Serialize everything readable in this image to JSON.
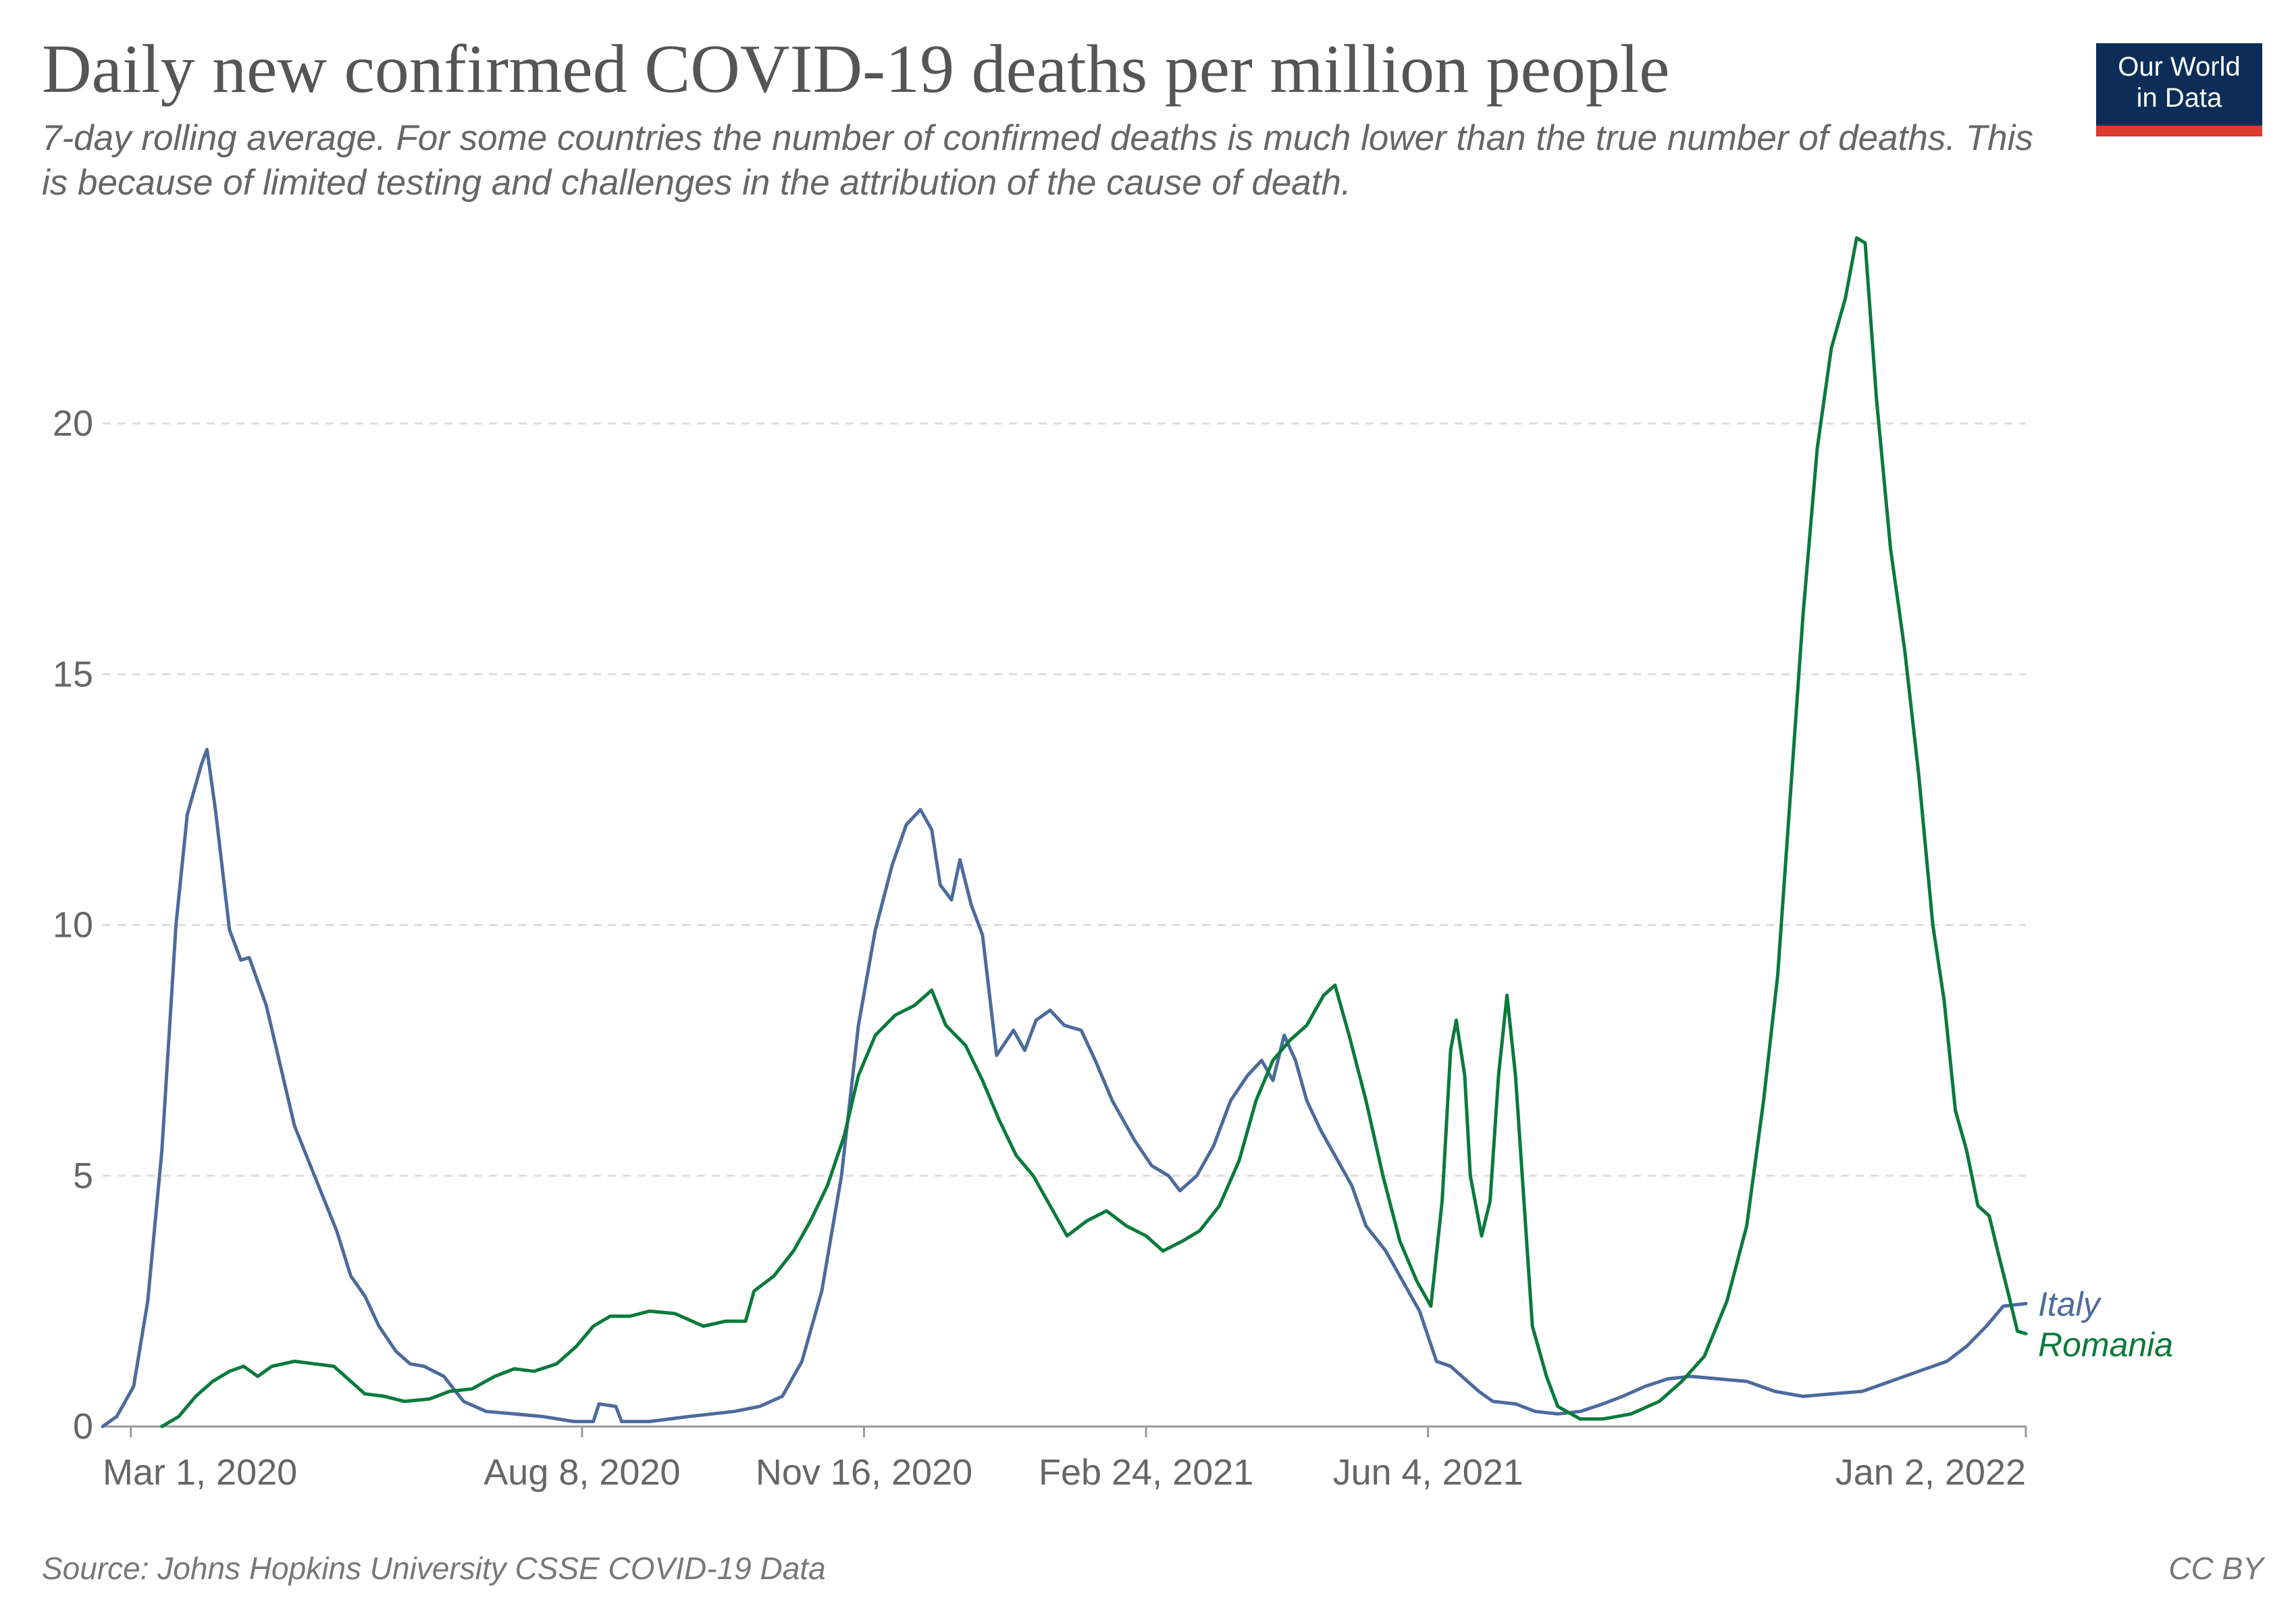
{
  "header": {
    "title": "Daily new confirmed COVID-19 deaths per million people",
    "subtitle": "7-day rolling average. For some countries the number of confirmed deaths is much lower than the true number of deaths. This is because of limited testing and challenges in the attribution of the cause of death.",
    "logo_text": "Our World\nin Data"
  },
  "footer": {
    "source": "Source: Johns Hopkins University CSSE COVID-19 Data",
    "license": "CC BY"
  },
  "colors": {
    "italy": "#4c6a9c",
    "romania": "#0a7a3c",
    "grid": "#dddddd",
    "axis_text": "#666666",
    "logo_bg": "#0c2d57",
    "logo_bar": "#dd3b2f"
  },
  "chart_data": {
    "type": "line",
    "title": "Daily new confirmed COVID-19 deaths per million people",
    "xlabel": "",
    "ylabel": "",
    "x_range": [
      "2020-02-20",
      "2022-01-02"
    ],
    "ylim": [
      0,
      24
    ],
    "yticks": [
      0,
      5,
      10,
      15,
      20
    ],
    "ytick_labels": [
      "0",
      "5",
      "10",
      "15",
      "20"
    ],
    "xticks": [
      "2020-03-01",
      "2020-08-08",
      "2020-11-16",
      "2021-02-24",
      "2021-06-04",
      "2022-01-02"
    ],
    "xtick_labels": [
      "Mar 1, 2020",
      "Aug 8, 2020",
      "Nov 16, 2020",
      "Feb 24, 2021",
      "Jun 4, 2021",
      "Jan 2, 2022"
    ],
    "grid": "horizontal dashed",
    "legend": "inline labels at right end of lines",
    "series": [
      {
        "name": "Italy",
        "color": "#4c6a9c",
        "points": [
          [
            "2020-02-20",
            0
          ],
          [
            "2020-02-25",
            0.2
          ],
          [
            "2020-03-02",
            0.8
          ],
          [
            "2020-03-07",
            2.5
          ],
          [
            "2020-03-12",
            5.5
          ],
          [
            "2020-03-17",
            10
          ],
          [
            "2020-03-21",
            12.2
          ],
          [
            "2020-03-26",
            13.2
          ],
          [
            "2020-03-28",
            13.5
          ],
          [
            "2020-03-31",
            12.3
          ],
          [
            "2020-04-05",
            9.9
          ],
          [
            "2020-04-09",
            9.3
          ],
          [
            "2020-04-12",
            9.35
          ],
          [
            "2020-04-18",
            8.4
          ],
          [
            "2020-04-23",
            7.2
          ],
          [
            "2020-04-28",
            6.0
          ],
          [
            "2020-05-03",
            5.3
          ],
          [
            "2020-05-08",
            4.6
          ],
          [
            "2020-05-13",
            3.9
          ],
          [
            "2020-05-18",
            3.0
          ],
          [
            "2020-05-23",
            2.6
          ],
          [
            "2020-05-28",
            2.0
          ],
          [
            "2020-06-03",
            1.5
          ],
          [
            "2020-06-08",
            1.25
          ],
          [
            "2020-06-13",
            1.2
          ],
          [
            "2020-06-20",
            1.0
          ],
          [
            "2020-06-27",
            0.5
          ],
          [
            "2020-07-05",
            0.3
          ],
          [
            "2020-07-15",
            0.25
          ],
          [
            "2020-07-25",
            0.2
          ],
          [
            "2020-08-05",
            0.1
          ],
          [
            "2020-08-12",
            0.1
          ],
          [
            "2020-08-14",
            0.45
          ],
          [
            "2020-08-20",
            0.4
          ],
          [
            "2020-08-22",
            0.1
          ],
          [
            "2020-09-01",
            0.1
          ],
          [
            "2020-09-15",
            0.2
          ],
          [
            "2020-10-01",
            0.3
          ],
          [
            "2020-10-10",
            0.4
          ],
          [
            "2020-10-18",
            0.6
          ],
          [
            "2020-10-25",
            1.3
          ],
          [
            "2020-11-01",
            2.7
          ],
          [
            "2020-11-08",
            5.0
          ],
          [
            "2020-11-14",
            8.0
          ],
          [
            "2020-11-20",
            9.9
          ],
          [
            "2020-11-26",
            11.2
          ],
          [
            "2020-12-01",
            12.0
          ],
          [
            "2020-12-06",
            12.3
          ],
          [
            "2020-12-10",
            11.9
          ],
          [
            "2020-12-13",
            10.8
          ],
          [
            "2020-12-17",
            10.5
          ],
          [
            "2020-12-20",
            11.3
          ],
          [
            "2020-12-24",
            10.4
          ],
          [
            "2020-12-28",
            9.8
          ],
          [
            "2021-01-02",
            7.4
          ],
          [
            "2021-01-08",
            7.9
          ],
          [
            "2021-01-12",
            7.5
          ],
          [
            "2021-01-16",
            8.1
          ],
          [
            "2021-01-21",
            8.3
          ],
          [
            "2021-01-26",
            8.0
          ],
          [
            "2021-02-01",
            7.9
          ],
          [
            "2021-02-06",
            7.3
          ],
          [
            "2021-02-12",
            6.5
          ],
          [
            "2021-02-20",
            5.7
          ],
          [
            "2021-02-26",
            5.2
          ],
          [
            "2021-03-04",
            5.0
          ],
          [
            "2021-03-08",
            4.7
          ],
          [
            "2021-03-14",
            5.0
          ],
          [
            "2021-03-20",
            5.6
          ],
          [
            "2021-03-26",
            6.5
          ],
          [
            "2021-04-01",
            7.0
          ],
          [
            "2021-04-06",
            7.3
          ],
          [
            "2021-04-10",
            6.9
          ],
          [
            "2021-04-14",
            7.8
          ],
          [
            "2021-04-18",
            7.3
          ],
          [
            "2021-04-22",
            6.5
          ],
          [
            "2021-04-27",
            5.9
          ],
          [
            "2021-05-02",
            5.4
          ],
          [
            "2021-05-08",
            4.8
          ],
          [
            "2021-05-13",
            4.0
          ],
          [
            "2021-05-20",
            3.5
          ],
          [
            "2021-05-26",
            2.9
          ],
          [
            "2021-06-01",
            2.3
          ],
          [
            "2021-06-07",
            1.3
          ],
          [
            "2021-06-12",
            1.2
          ],
          [
            "2021-06-17",
            0.95
          ],
          [
            "2021-06-22",
            0.7
          ],
          [
            "2021-06-27",
            0.5
          ],
          [
            "2021-07-05",
            0.45
          ],
          [
            "2021-07-12",
            0.3
          ],
          [
            "2021-07-20",
            0.25
          ],
          [
            "2021-07-28",
            0.3
          ],
          [
            "2021-08-05",
            0.45
          ],
          [
            "2021-08-12",
            0.6
          ],
          [
            "2021-08-20",
            0.8
          ],
          [
            "2021-08-28",
            0.95
          ],
          [
            "2021-09-05",
            1.0
          ],
          [
            "2021-09-15",
            0.95
          ],
          [
            "2021-09-25",
            0.9
          ],
          [
            "2021-10-05",
            0.7
          ],
          [
            "2021-10-15",
            0.6
          ],
          [
            "2021-10-25",
            0.65
          ],
          [
            "2021-11-05",
            0.7
          ],
          [
            "2021-11-15",
            0.9
          ],
          [
            "2021-11-25",
            1.1
          ],
          [
            "2021-12-05",
            1.3
          ],
          [
            "2021-12-12",
            1.6
          ],
          [
            "2021-12-19",
            2.0
          ],
          [
            "2021-12-25",
            2.4
          ],
          [
            "2022-01-02",
            2.45
          ]
        ]
      },
      {
        "name": "Romania",
        "color": "#0a7a3c",
        "points": [
          [
            "2020-03-12",
            0
          ],
          [
            "2020-03-18",
            0.2
          ],
          [
            "2020-03-24",
            0.6
          ],
          [
            "2020-03-30",
            0.9
          ],
          [
            "2020-04-05",
            1.1
          ],
          [
            "2020-04-10",
            1.2
          ],
          [
            "2020-04-15",
            1.0
          ],
          [
            "2020-04-20",
            1.2
          ],
          [
            "2020-04-28",
            1.3
          ],
          [
            "2020-05-05",
            1.25
          ],
          [
            "2020-05-12",
            1.2
          ],
          [
            "2020-05-18",
            0.9
          ],
          [
            "2020-05-23",
            0.65
          ],
          [
            "2020-05-30",
            0.6
          ],
          [
            "2020-06-06",
            0.5
          ],
          [
            "2020-06-15",
            0.55
          ],
          [
            "2020-06-22",
            0.7
          ],
          [
            "2020-06-30",
            0.75
          ],
          [
            "2020-07-08",
            1.0
          ],
          [
            "2020-07-15",
            1.15
          ],
          [
            "2020-07-22",
            1.1
          ],
          [
            "2020-07-30",
            1.25
          ],
          [
            "2020-08-06",
            1.6
          ],
          [
            "2020-08-12",
            2.0
          ],
          [
            "2020-08-18",
            2.2
          ],
          [
            "2020-08-25",
            2.2
          ],
          [
            "2020-09-01",
            2.3
          ],
          [
            "2020-09-10",
            2.25
          ],
          [
            "2020-09-20",
            2.0
          ],
          [
            "2020-09-28",
            2.1
          ],
          [
            "2020-10-05",
            2.1
          ],
          [
            "2020-10-08",
            2.7
          ],
          [
            "2020-10-15",
            3.0
          ],
          [
            "2020-10-22",
            3.5
          ],
          [
            "2020-10-28",
            4.1
          ],
          [
            "2020-11-03",
            4.8
          ],
          [
            "2020-11-09",
            5.8
          ],
          [
            "2020-11-14",
            7.0
          ],
          [
            "2020-11-20",
            7.8
          ],
          [
            "2020-11-27",
            8.2
          ],
          [
            "2020-12-04",
            8.4
          ],
          [
            "2020-12-10",
            8.7
          ],
          [
            "2020-12-15",
            8.0
          ],
          [
            "2020-12-22",
            7.6
          ],
          [
            "2020-12-28",
            6.9
          ],
          [
            "2021-01-03",
            6.1
          ],
          [
            "2021-01-09",
            5.4
          ],
          [
            "2021-01-15",
            5.0
          ],
          [
            "2021-01-21",
            4.4
          ],
          [
            "2021-01-27",
            3.8
          ],
          [
            "2021-02-03",
            4.1
          ],
          [
            "2021-02-10",
            4.3
          ],
          [
            "2021-02-17",
            4.0
          ],
          [
            "2021-02-24",
            3.8
          ],
          [
            "2021-03-02",
            3.5
          ],
          [
            "2021-03-09",
            3.7
          ],
          [
            "2021-03-15",
            3.9
          ],
          [
            "2021-03-22",
            4.4
          ],
          [
            "2021-03-29",
            5.3
          ],
          [
            "2021-04-04",
            6.5
          ],
          [
            "2021-04-10",
            7.3
          ],
          [
            "2021-04-16",
            7.7
          ],
          [
            "2021-04-22",
            8.0
          ],
          [
            "2021-04-28",
            8.6
          ],
          [
            "2021-05-02",
            8.8
          ],
          [
            "2021-05-07",
            7.8
          ],
          [
            "2021-05-13",
            6.5
          ],
          [
            "2021-05-19",
            5.0
          ],
          [
            "2021-05-25",
            3.7
          ],
          [
            "2021-05-31",
            2.9
          ],
          [
            "2021-06-05",
            2.4
          ],
          [
            "2021-06-09",
            4.5
          ],
          [
            "2021-06-12",
            7.5
          ],
          [
            "2021-06-14",
            8.1
          ],
          [
            "2021-06-17",
            7.0
          ],
          [
            "2021-06-19",
            5.0
          ],
          [
            "2021-06-23",
            3.8
          ],
          [
            "2021-06-26",
            4.5
          ],
          [
            "2021-06-29",
            7.0
          ],
          [
            "2021-07-02",
            8.6
          ],
          [
            "2021-07-05",
            7.0
          ],
          [
            "2021-07-08",
            4.5
          ],
          [
            "2021-07-11",
            2.0
          ],
          [
            "2021-07-16",
            1.0
          ],
          [
            "2021-07-20",
            0.4
          ],
          [
            "2021-07-28",
            0.15
          ],
          [
            "2021-08-05",
            0.15
          ],
          [
            "2021-08-15",
            0.25
          ],
          [
            "2021-08-25",
            0.5
          ],
          [
            "2021-09-02",
            0.9
          ],
          [
            "2021-09-10",
            1.4
          ],
          [
            "2021-09-18",
            2.5
          ],
          [
            "2021-09-25",
            4.0
          ],
          [
            "2021-10-01",
            6.5
          ],
          [
            "2021-10-06",
            9.0
          ],
          [
            "2021-10-11",
            13.0
          ],
          [
            "2021-10-15",
            16.2
          ],
          [
            "2021-10-20",
            19.5
          ],
          [
            "2021-10-25",
            21.5
          ],
          [
            "2021-10-30",
            22.5
          ],
          [
            "2021-11-03",
            23.7
          ],
          [
            "2021-11-06",
            23.6
          ],
          [
            "2021-11-10",
            20.5
          ],
          [
            "2021-11-15",
            17.5
          ],
          [
            "2021-11-20",
            15.5
          ],
          [
            "2021-11-25",
            13.0
          ],
          [
            "2021-11-30",
            10.0
          ],
          [
            "2021-12-04",
            8.5
          ],
          [
            "2021-12-08",
            6.3
          ],
          [
            "2021-12-12",
            5.5
          ],
          [
            "2021-12-16",
            4.4
          ],
          [
            "2021-12-20",
            4.2
          ],
          [
            "2021-12-23",
            3.5
          ],
          [
            "2021-12-27",
            2.6
          ],
          [
            "2021-12-30",
            1.9
          ],
          [
            "2022-01-02",
            1.85
          ]
        ]
      }
    ]
  }
}
